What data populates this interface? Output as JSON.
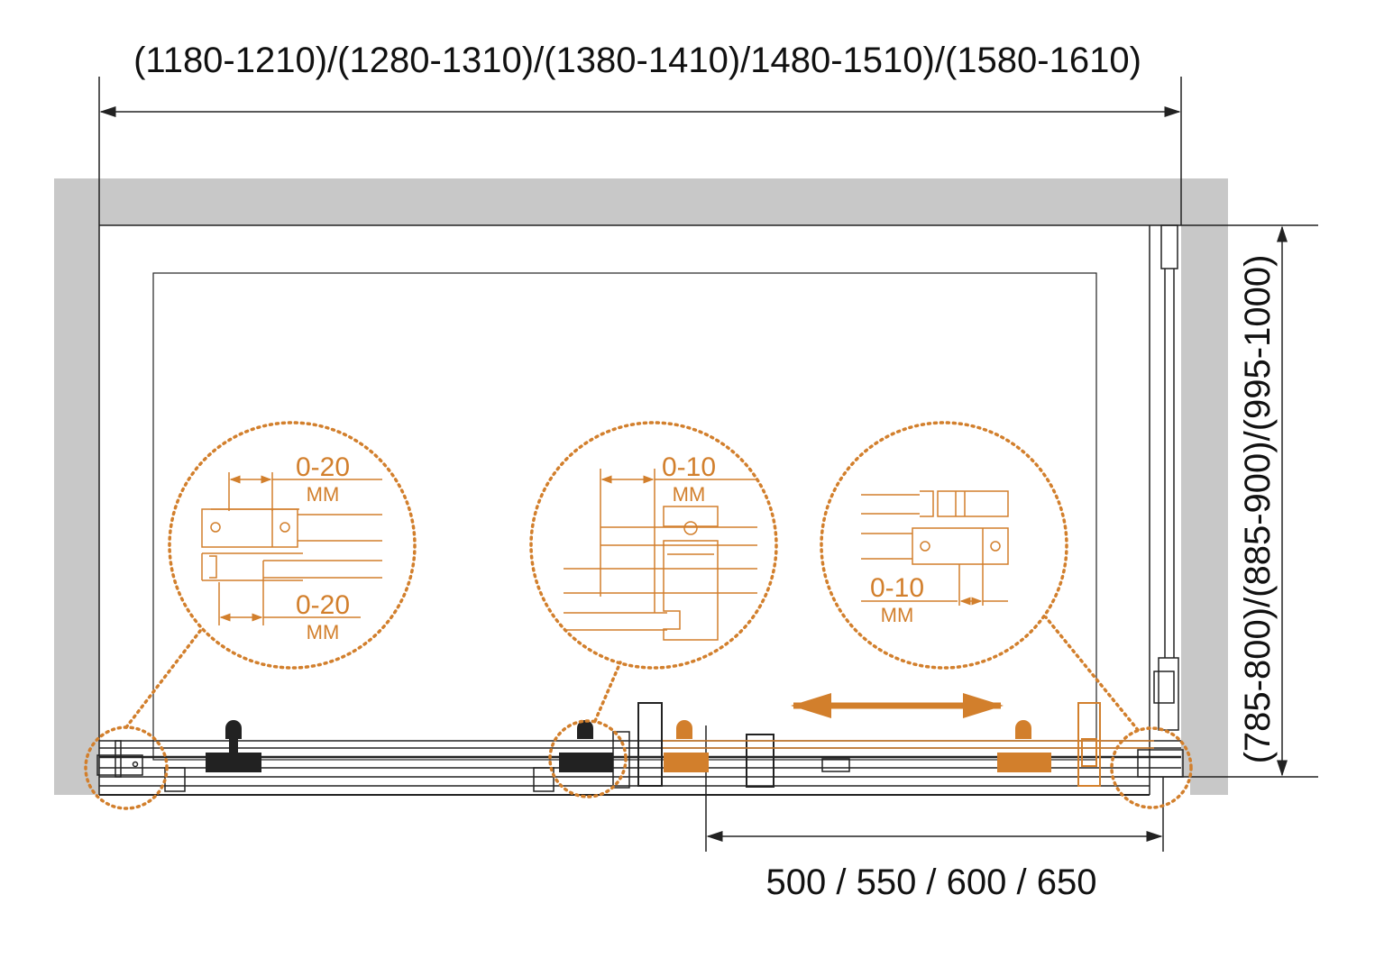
{
  "dimensions": {
    "width_range": "(1180-1210)/(1280-1310)/(1380-1410)/1480-1510)/(1580-1610)",
    "depth_range": "(785-800)/(885-900)/(995-1000)",
    "door_opening": "500 / 550 / 600 / 650"
  },
  "details": [
    {
      "top_value": "0-20",
      "top_unit": "MM",
      "bottom_value": "0-20",
      "bottom_unit": "MM"
    },
    {
      "top_value": "0-10",
      "top_unit": "MM"
    },
    {
      "bottom_value": "0-10",
      "bottom_unit": "MM"
    }
  ],
  "colors": {
    "accent": "#d27f2c",
    "wall": "#c8c8c8",
    "line": "#222222"
  }
}
